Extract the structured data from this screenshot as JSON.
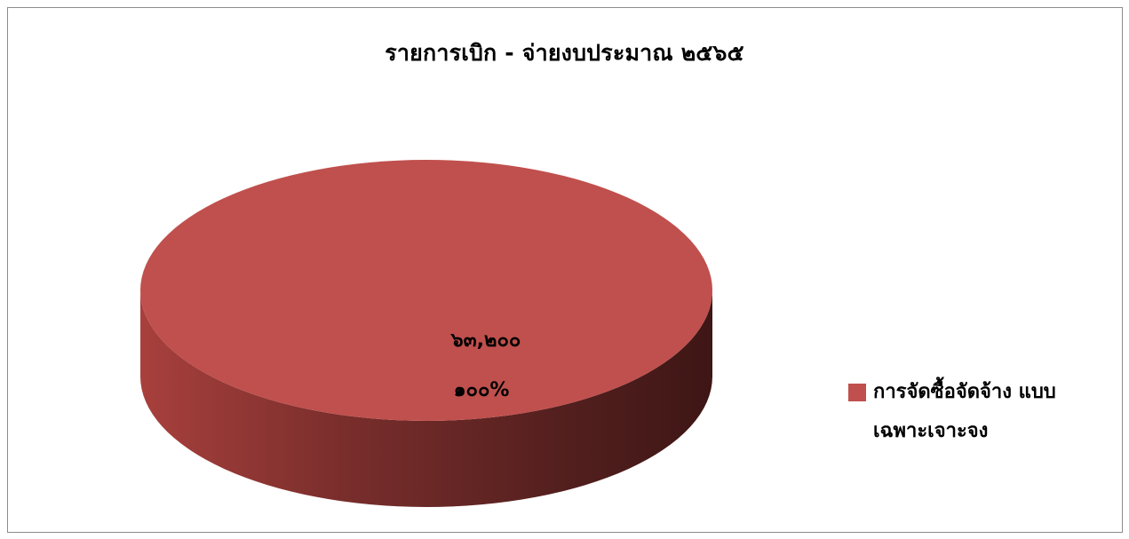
{
  "chart_data": {
    "type": "pie",
    "title": "รายการเบิก - จ่ายงบประมาณ ๒๕๖๕",
    "style": "3d",
    "legend_position": "right",
    "slices": [
      {
        "label": "การจัดซื้อจัดจ้าง แบบเฉพาะเจาะจง",
        "value": 63200,
        "value_label": "๖๓,๒๐๐",
        "percent": 100,
        "percent_label": "๑๐๐%",
        "color": "#C0504D"
      }
    ]
  }
}
